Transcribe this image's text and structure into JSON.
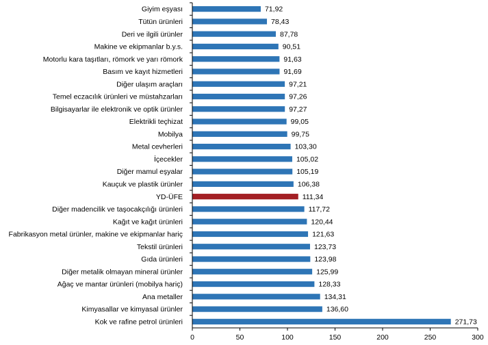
{
  "chart_data": {
    "type": "bar",
    "orientation": "horizontal",
    "title": "",
    "xlabel": "",
    "ylabel": "",
    "xlim": [
      0,
      300
    ],
    "x_ticks": [
      "0",
      "50",
      "100",
      "150",
      "200",
      "250",
      "300"
    ],
    "grid": false,
    "categories": [
      "Giyim eşyası",
      "Tütün ürünleri",
      "Deri ve ilgili ürünler",
      "Makine ve ekipmanlar b.y.s.",
      "Motorlu kara taşıtları, römork ve yarı römork",
      "Basım ve kayıt hizmetleri",
      "Diğer ulaşım araçları",
      "Temel eczacılık ürünleri ve müstahzarları",
      "Bilgisayarlar ile elektronik ve optik ürünler",
      "Elektrikli teçhizat",
      "Mobilya",
      "Metal cevherleri",
      "İçecekler",
      "Diğer mamul eşyalar",
      "Kauçuk ve plastik ürünler",
      "YD-ÜFE",
      "Diğer madencilik ve taşocakçılığı ürünleri",
      "Kağıt ve kağıt ürünleri",
      "Fabrikasyon metal ürünler, makine ve ekipmanlar hariç",
      "Tekstil ürünleri",
      "Gıda ürünleri",
      "Diğer metalik olmayan mineral ürünler",
      "Ağaç ve mantar ürünleri (mobilya hariç)",
      "Ana metaller",
      "Kimyasallar ve kimyasal ürünler",
      "Kok ve rafine petrol ürünleri"
    ],
    "values": [
      71.92,
      78.43,
      87.78,
      90.51,
      91.63,
      91.69,
      97.21,
      97.26,
      97.27,
      99.05,
      99.75,
      103.3,
      105.02,
      105.19,
      106.38,
      111.34,
      117.72,
      120.44,
      121.63,
      123.73,
      123.98,
      125.99,
      128.33,
      134.31,
      136.6,
      271.73
    ],
    "value_labels": [
      "71,92",
      "78,43",
      "87,78",
      "90,51",
      "91,63",
      "91,69",
      "97,21",
      "97,26",
      "97,27",
      "99,05",
      "99,75",
      "103,30",
      "105,02",
      "105,19",
      "106,38",
      "111,34",
      "117,72",
      "120,44",
      "121,63",
      "123,73",
      "123,98",
      "125,99",
      "128,33",
      "134,31",
      "136,60",
      "271,73"
    ],
    "highlight_category": "YD-ÜFE",
    "colors": {
      "bar": "#2e75b6",
      "highlight": "#a31f24",
      "axis": "#000000",
      "text": "#000000"
    }
  }
}
